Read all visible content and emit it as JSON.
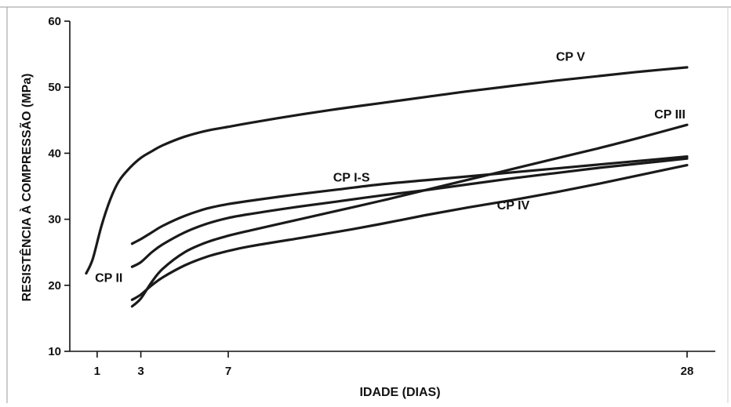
{
  "chart_data": {
    "type": "line",
    "title": "",
    "xlabel": "IDADE (DIAS)",
    "ylabel": "RESISTÊNCIA À COMPRESSÃO (MPa)",
    "xlim": [
      0,
      28
    ],
    "ylim": [
      10,
      60
    ],
    "grid": false,
    "legend": "none",
    "x_ticks": [
      {
        "value": 1,
        "label": "1"
      },
      {
        "value": 3,
        "label": "3"
      },
      {
        "value": 7,
        "label": "7"
      },
      {
        "value": 28,
        "label": "28"
      }
    ],
    "y_ticks": [
      {
        "value": 10,
        "label": "10"
      },
      {
        "value": 20,
        "label": "20"
      },
      {
        "value": 30,
        "label": "30"
      },
      {
        "value": 40,
        "label": "40"
      },
      {
        "value": 50,
        "label": "50"
      },
      {
        "value": 60,
        "label": "60"
      }
    ],
    "series": [
      {
        "name": "CP V",
        "label_at": [
          22,
          54
        ],
        "points": [
          [
            0.5,
            21.8
          ],
          [
            0.8,
            24
          ],
          [
            1.2,
            29
          ],
          [
            1.6,
            33
          ],
          [
            2,
            35.8
          ],
          [
            2.5,
            37.8
          ],
          [
            3,
            39.3
          ],
          [
            3.5,
            40.3
          ],
          [
            4,
            41.2
          ],
          [
            5,
            42.5
          ],
          [
            6,
            43.4
          ],
          [
            7,
            44
          ],
          [
            8,
            44.6
          ],
          [
            10,
            45.7
          ],
          [
            12,
            46.7
          ],
          [
            14,
            47.6
          ],
          [
            16,
            48.5
          ],
          [
            18,
            49.4
          ],
          [
            20,
            50.2
          ],
          [
            22,
            51
          ],
          [
            24,
            51.7
          ],
          [
            26,
            52.4
          ],
          [
            28,
            53
          ]
        ]
      },
      {
        "name": "CP III",
        "label_at": [
          26.5,
          45.3
        ],
        "points": [
          [
            2.6,
            16.8
          ],
          [
            3,
            18
          ],
          [
            3.5,
            20.5
          ],
          [
            4,
            22.5
          ],
          [
            5,
            25
          ],
          [
            6,
            26.5
          ],
          [
            7,
            27.5
          ],
          [
            8,
            28.3
          ],
          [
            10,
            29.8
          ],
          [
            12,
            31.3
          ],
          [
            14,
            32.8
          ],
          [
            16,
            34.4
          ],
          [
            18,
            36
          ],
          [
            20,
            37.6
          ],
          [
            22,
            39.2
          ],
          [
            24,
            40.8
          ],
          [
            26,
            42.5
          ],
          [
            28,
            44.3
          ]
        ]
      },
      {
        "name": "CP I-S",
        "label_at": [
          11.8,
          35.7
        ],
        "points": [
          [
            2.6,
            26.3
          ],
          [
            3,
            27
          ],
          [
            3.5,
            28
          ],
          [
            4,
            29
          ],
          [
            5,
            30.5
          ],
          [
            6,
            31.6
          ],
          [
            7,
            32.3
          ],
          [
            8,
            32.8
          ],
          [
            10,
            33.7
          ],
          [
            12,
            34.5
          ],
          [
            14,
            35.3
          ],
          [
            16,
            35.9
          ],
          [
            18,
            36.5
          ],
          [
            20,
            37.1
          ],
          [
            22,
            37.7
          ],
          [
            24,
            38.3
          ],
          [
            26,
            38.9
          ],
          [
            28,
            39.5
          ]
        ]
      },
      {
        "name": "CP II",
        "label_at": [
          0.9,
          20.5
        ],
        "points": [
          [
            2.6,
            22.8
          ],
          [
            3,
            23.5
          ],
          [
            3.5,
            25
          ],
          [
            4,
            26.2
          ],
          [
            5,
            28
          ],
          [
            6,
            29.3
          ],
          [
            7,
            30.2
          ],
          [
            8,
            30.8
          ],
          [
            10,
            31.8
          ],
          [
            12,
            32.7
          ],
          [
            14,
            33.6
          ],
          [
            16,
            34.4
          ],
          [
            18,
            35.3
          ],
          [
            20,
            36.2
          ],
          [
            22,
            37
          ],
          [
            24,
            37.8
          ],
          [
            26,
            38.5
          ],
          [
            28,
            39.2
          ]
        ]
      },
      {
        "name": "CP IV",
        "label_at": [
          19.3,
          31.5
        ],
        "points": [
          [
            2.6,
            17.8
          ],
          [
            3,
            18.6
          ],
          [
            3.5,
            20
          ],
          [
            4,
            21.2
          ],
          [
            5,
            23
          ],
          [
            6,
            24.3
          ],
          [
            7,
            25.2
          ],
          [
            8,
            25.9
          ],
          [
            10,
            27
          ],
          [
            12,
            28.1
          ],
          [
            14,
            29.3
          ],
          [
            16,
            30.6
          ],
          [
            18,
            31.8
          ],
          [
            20,
            32.9
          ],
          [
            22,
            34.1
          ],
          [
            24,
            35.4
          ],
          [
            26,
            36.8
          ],
          [
            28,
            38.2
          ]
        ]
      }
    ]
  }
}
